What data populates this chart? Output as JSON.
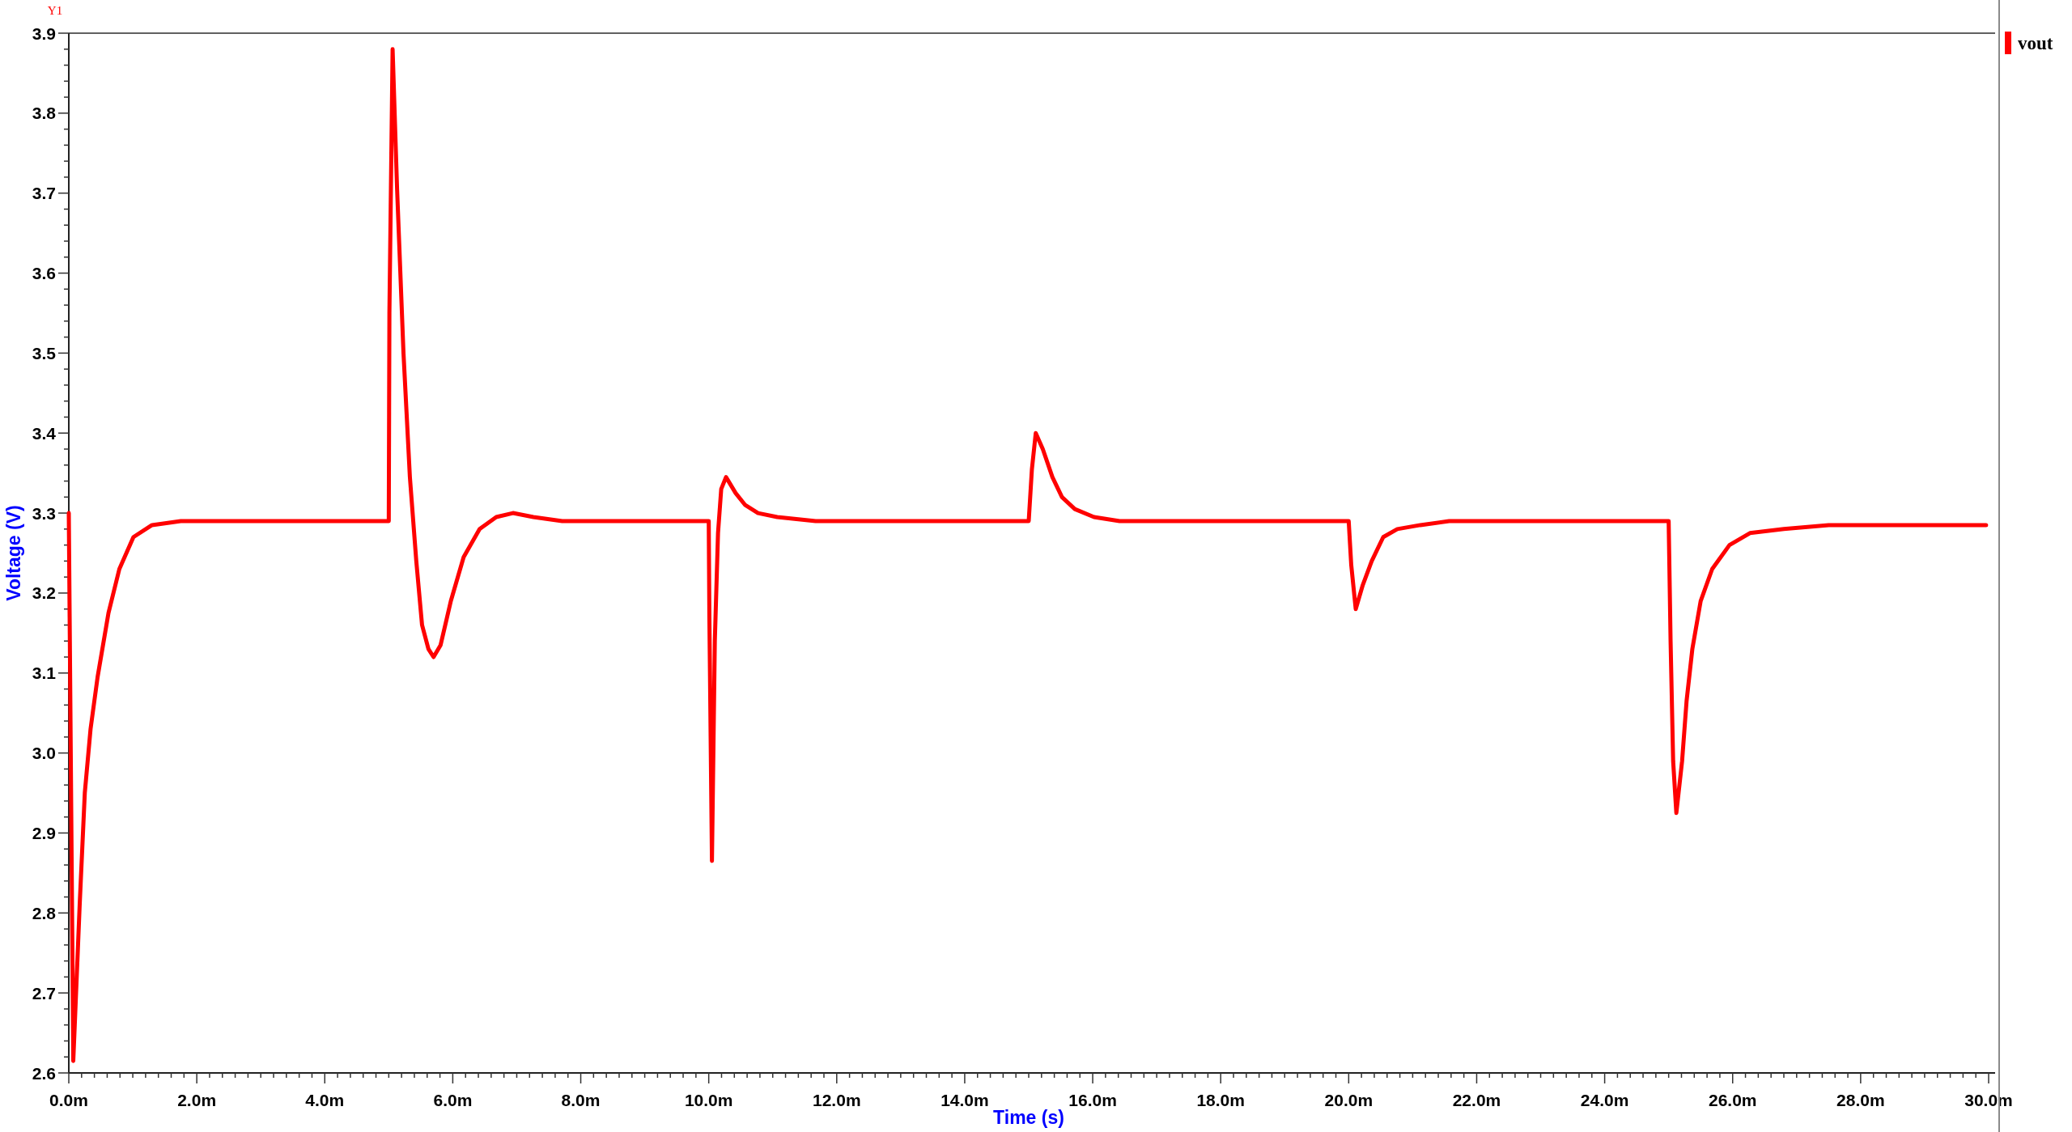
{
  "chart_data": {
    "type": "line",
    "xlabel": "Time (s)",
    "ylabel": "Voltage (V)",
    "annotations": [
      "Y1"
    ],
    "legend": "top right",
    "line_style": "solid",
    "xlim": [
      0,
      30
    ],
    "ylim": [
      2.6,
      3.9
    ],
    "x": [
      0,
      0.07,
      0.17,
      0.25,
      0.34,
      0.45,
      0.62,
      0.79,
      1.01,
      1.3,
      1.75,
      5,
      5.01,
      5.06,
      5.13,
      5.23,
      5.33,
      5.43,
      5.52,
      5.62,
      5.7,
      5.81,
      5.97,
      6.17,
      6.42,
      6.68,
      6.94,
      7.26,
      7.71,
      10,
      10.01,
      10.05,
      10.095,
      10.145,
      10.195,
      10.27,
      10.42,
      10.57,
      10.77,
      11.07,
      11.67,
      15,
      15.05,
      15.11,
      15.22,
      15.37,
      15.52,
      15.72,
      16.02,
      16.42,
      20,
      20.04,
      20.11,
      20.22,
      20.36,
      20.54,
      20.76,
      21.12,
      21.57,
      25,
      25.03,
      25.07,
      25.12,
      25.21,
      25.28,
      25.37,
      25.5,
      25.68,
      25.95,
      26.27,
      26.8,
      27.5,
      29.96
    ],
    "series": [
      {
        "name": "vout",
        "color": "#ff0000",
        "values": [
          3.3,
          2.615,
          2.81,
          2.95,
          3.03,
          3.095,
          3.175,
          3.23,
          3.27,
          3.285,
          3.29,
          3.29,
          3.55,
          3.88,
          3.705,
          3.5,
          3.345,
          3.24,
          3.16,
          3.13,
          3.12,
          3.135,
          3.19,
          3.245,
          3.28,
          3.295,
          3.3,
          3.295,
          3.29,
          3.29,
          3.17,
          2.865,
          3.14,
          3.275,
          3.33,
          3.345,
          3.325,
          3.31,
          3.3,
          3.295,
          3.29,
          3.29,
          3.355,
          3.4,
          3.38,
          3.345,
          3.32,
          3.305,
          3.295,
          3.29,
          3.29,
          3.235,
          3.18,
          3.21,
          3.24,
          3.27,
          3.28,
          3.285,
          3.29,
          3.29,
          3.14,
          2.99,
          2.925,
          2.99,
          3.065,
          3.13,
          3.19,
          3.23,
          3.26,
          3.275,
          3.28,
          3.285,
          3.285
        ]
      }
    ],
    "xticks": [
      {
        "value": 0,
        "label": "0.0m"
      },
      {
        "value": 0.2,
        "label": null
      },
      {
        "value": 0.4,
        "label": null
      },
      {
        "value": 0.6,
        "label": null
      },
      {
        "value": 0.8,
        "label": null
      },
      {
        "value": 1,
        "label": null
      },
      {
        "value": 1.2,
        "label": null
      },
      {
        "value": 1.4,
        "label": null
      },
      {
        "value": 1.6,
        "label": null
      },
      {
        "value": 1.8,
        "label": null
      },
      {
        "value": 2,
        "label": "2.0m"
      },
      {
        "value": 2.2,
        "label": null
      },
      {
        "value": 2.4,
        "label": null
      },
      {
        "value": 2.6,
        "label": null
      },
      {
        "value": 2.8,
        "label": null
      },
      {
        "value": 3,
        "label": null
      },
      {
        "value": 3.2,
        "label": null
      },
      {
        "value": 3.4,
        "label": null
      },
      {
        "value": 3.6,
        "label": null
      },
      {
        "value": 3.8,
        "label": null
      },
      {
        "value": 4,
        "label": "4.0m"
      },
      {
        "value": 4.2,
        "label": null
      },
      {
        "value": 4.4,
        "label": null
      },
      {
        "value": 4.6,
        "label": null
      },
      {
        "value": 4.8,
        "label": null
      },
      {
        "value": 5,
        "label": null
      },
      {
        "value": 5.2,
        "label": null
      },
      {
        "value": 5.4,
        "label": null
      },
      {
        "value": 5.6,
        "label": null
      },
      {
        "value": 5.8,
        "label": null
      },
      {
        "value": 6,
        "label": "6.0m"
      },
      {
        "value": 6.2,
        "label": null
      },
      {
        "value": 6.4,
        "label": null
      },
      {
        "value": 6.6,
        "label": null
      },
      {
        "value": 6.8,
        "label": null
      },
      {
        "value": 7,
        "label": null
      },
      {
        "value": 7.2,
        "label": null
      },
      {
        "value": 7.4,
        "label": null
      },
      {
        "value": 7.6,
        "label": null
      },
      {
        "value": 7.8,
        "label": null
      },
      {
        "value": 8,
        "label": "8.0m"
      },
      {
        "value": 8.2,
        "label": null
      },
      {
        "value": 8.4,
        "label": null
      },
      {
        "value": 8.6,
        "label": null
      },
      {
        "value": 8.8,
        "label": null
      },
      {
        "value": 9,
        "label": null
      },
      {
        "value": 9.2,
        "label": null
      },
      {
        "value": 9.4,
        "label": null
      },
      {
        "value": 9.6,
        "label": null
      },
      {
        "value": 9.8,
        "label": null
      },
      {
        "value": 10,
        "label": "10.0m"
      },
      {
        "value": 10.2,
        "label": null
      },
      {
        "value": 10.4,
        "label": null
      },
      {
        "value": 10.6,
        "label": null
      },
      {
        "value": 10.8,
        "label": null
      },
      {
        "value": 11,
        "label": null
      },
      {
        "value": 11.2,
        "label": null
      },
      {
        "value": 11.4,
        "label": null
      },
      {
        "value": 11.6,
        "label": null
      },
      {
        "value": 11.8,
        "label": null
      },
      {
        "value": 12,
        "label": "12.0m"
      },
      {
        "value": 12.2,
        "label": null
      },
      {
        "value": 12.4,
        "label": null
      },
      {
        "value": 12.6,
        "label": null
      },
      {
        "value": 12.8,
        "label": null
      },
      {
        "value": 13,
        "label": null
      },
      {
        "value": 13.2,
        "label": null
      },
      {
        "value": 13.4,
        "label": null
      },
      {
        "value": 13.6,
        "label": null
      },
      {
        "value": 13.8,
        "label": null
      },
      {
        "value": 14,
        "label": "14.0m"
      },
      {
        "value": 14.2,
        "label": null
      },
      {
        "value": 14.4,
        "label": null
      },
      {
        "value": 14.6,
        "label": null
      },
      {
        "value": 14.8,
        "label": null
      },
      {
        "value": 15,
        "label": null
      },
      {
        "value": 15.2,
        "label": null
      },
      {
        "value": 15.4,
        "label": null
      },
      {
        "value": 15.6,
        "label": null
      },
      {
        "value": 15.8,
        "label": null
      },
      {
        "value": 16,
        "label": "16.0m"
      },
      {
        "value": 16.2,
        "label": null
      },
      {
        "value": 16.4,
        "label": null
      },
      {
        "value": 16.6,
        "label": null
      },
      {
        "value": 16.8,
        "label": null
      },
      {
        "value": 17,
        "label": null
      },
      {
        "value": 17.2,
        "label": null
      },
      {
        "value": 17.4,
        "label": null
      },
      {
        "value": 17.6,
        "label": null
      },
      {
        "value": 17.8,
        "label": null
      },
      {
        "value": 18,
        "label": "18.0m"
      },
      {
        "value": 18.2,
        "label": null
      },
      {
        "value": 18.4,
        "label": null
      },
      {
        "value": 18.6,
        "label": null
      },
      {
        "value": 18.8,
        "label": null
      },
      {
        "value": 19,
        "label": null
      },
      {
        "value": 19.2,
        "label": null
      },
      {
        "value": 19.4,
        "label": null
      },
      {
        "value": 19.6,
        "label": null
      },
      {
        "value": 19.8,
        "label": null
      },
      {
        "value": 20,
        "label": "20.0m"
      },
      {
        "value": 20.2,
        "label": null
      },
      {
        "value": 20.4,
        "label": null
      },
      {
        "value": 20.6,
        "label": null
      },
      {
        "value": 20.8,
        "label": null
      },
      {
        "value": 21,
        "label": null
      },
      {
        "value": 21.2,
        "label": null
      },
      {
        "value": 21.4,
        "label": null
      },
      {
        "value": 21.6,
        "label": null
      },
      {
        "value": 21.8,
        "label": null
      },
      {
        "value": 22,
        "label": "22.0m"
      },
      {
        "value": 22.2,
        "label": null
      },
      {
        "value": 22.4,
        "label": null
      },
      {
        "value": 22.6,
        "label": null
      },
      {
        "value": 22.8,
        "label": null
      },
      {
        "value": 23,
        "label": null
      },
      {
        "value": 23.2,
        "label": null
      },
      {
        "value": 23.4,
        "label": null
      },
      {
        "value": 23.6,
        "label": null
      },
      {
        "value": 23.8,
        "label": null
      },
      {
        "value": 24,
        "label": "24.0m"
      },
      {
        "value": 24.2,
        "label": null
      },
      {
        "value": 24.4,
        "label": null
      },
      {
        "value": 24.6,
        "label": null
      },
      {
        "value": 24.8,
        "label": null
      },
      {
        "value": 25,
        "label": null
      },
      {
        "value": 25.2,
        "label": null
      },
      {
        "value": 25.4,
        "label": null
      },
      {
        "value": 25.6,
        "label": null
      },
      {
        "value": 25.8,
        "label": null
      },
      {
        "value": 26,
        "label": "26.0m"
      },
      {
        "value": 26.2,
        "label": null
      },
      {
        "value": 26.4,
        "label": null
      },
      {
        "value": 26.6,
        "label": null
      },
      {
        "value": 26.8,
        "label": null
      },
      {
        "value": 27,
        "label": null
      },
      {
        "value": 27.2,
        "label": null
      },
      {
        "value": 27.4,
        "label": null
      },
      {
        "value": 27.6,
        "label": null
      },
      {
        "value": 27.8,
        "label": null
      },
      {
        "value": 28,
        "label": "28.0m"
      },
      {
        "value": 28.2,
        "label": null
      },
      {
        "value": 28.4,
        "label": null
      },
      {
        "value": 28.6,
        "label": null
      },
      {
        "value": 28.8,
        "label": null
      },
      {
        "value": 29,
        "label": null
      },
      {
        "value": 29.2,
        "label": null
      },
      {
        "value": 29.4,
        "label": null
      },
      {
        "value": 29.6,
        "label": null
      },
      {
        "value": 29.8,
        "label": null
      },
      {
        "value": 30,
        "label": "30.0m"
      }
    ],
    "yticks": [
      2.6,
      {
        "value": 2.62,
        "label": null
      },
      {
        "value": 2.64,
        "label": null
      },
      {
        "value": 2.66,
        "label": null
      },
      {
        "value": 2.68,
        "label": null
      },
      2.7,
      {
        "value": 2.72,
        "label": null
      },
      {
        "value": 2.74,
        "label": null
      },
      {
        "value": 2.76,
        "label": null
      },
      {
        "value": 2.78,
        "label": null
      },
      2.8,
      {
        "value": 2.82,
        "label": null
      },
      {
        "value": 2.84,
        "label": null
      },
      {
        "value": 2.86,
        "label": null
      },
      {
        "value": 2.88,
        "label": null
      },
      2.9,
      {
        "value": 2.92,
        "label": null
      },
      {
        "value": 2.94,
        "label": null
      },
      {
        "value": 2.96,
        "label": null
      },
      {
        "value": 2.98,
        "label": null
      },
      {
        "value": 3,
        "label": "3.0"
      },
      {
        "value": 3.02,
        "label": null
      },
      {
        "value": 3.04,
        "label": null
      },
      {
        "value": 3.06,
        "label": null
      },
      {
        "value": 3.08,
        "label": null
      },
      3.1,
      {
        "value": 3.12,
        "label": null
      },
      {
        "value": 3.14,
        "label": null
      },
      {
        "value": 3.16,
        "label": null
      },
      {
        "value": 3.18,
        "label": null
      },
      3.2,
      {
        "value": 3.22,
        "label": null
      },
      {
        "value": 3.24,
        "label": null
      },
      {
        "value": 3.26,
        "label": null
      },
      {
        "value": 3.28,
        "label": null
      },
      3.3,
      {
        "value": 3.32,
        "label": null
      },
      {
        "value": 3.34,
        "label": null
      },
      {
        "value": 3.36,
        "label": null
      },
      {
        "value": 3.38,
        "label": null
      },
      3.4,
      {
        "value": 3.42,
        "label": null
      },
      {
        "value": 3.44,
        "label": null
      },
      {
        "value": 3.46,
        "label": null
      },
      {
        "value": 3.48,
        "label": null
      },
      3.5,
      {
        "value": 3.52,
        "label": null
      },
      {
        "value": 3.54,
        "label": null
      },
      {
        "value": 3.56,
        "label": null
      },
      {
        "value": 3.58,
        "label": null
      },
      3.6,
      {
        "value": 3.62,
        "label": null
      },
      {
        "value": 3.64,
        "label": null
      },
      {
        "value": 3.66,
        "label": null
      },
      {
        "value": 3.68,
        "label": null
      },
      3.7,
      {
        "value": 3.72,
        "label": null
      },
      {
        "value": 3.74,
        "label": null
      },
      {
        "value": 3.76,
        "label": null
      },
      {
        "value": 3.78,
        "label": null
      },
      3.8,
      {
        "value": 3.82,
        "label": null
      },
      {
        "value": 3.84,
        "label": null
      },
      {
        "value": 3.86,
        "label": null
      },
      {
        "value": 3.88,
        "label": null
      },
      3.9
    ]
  }
}
